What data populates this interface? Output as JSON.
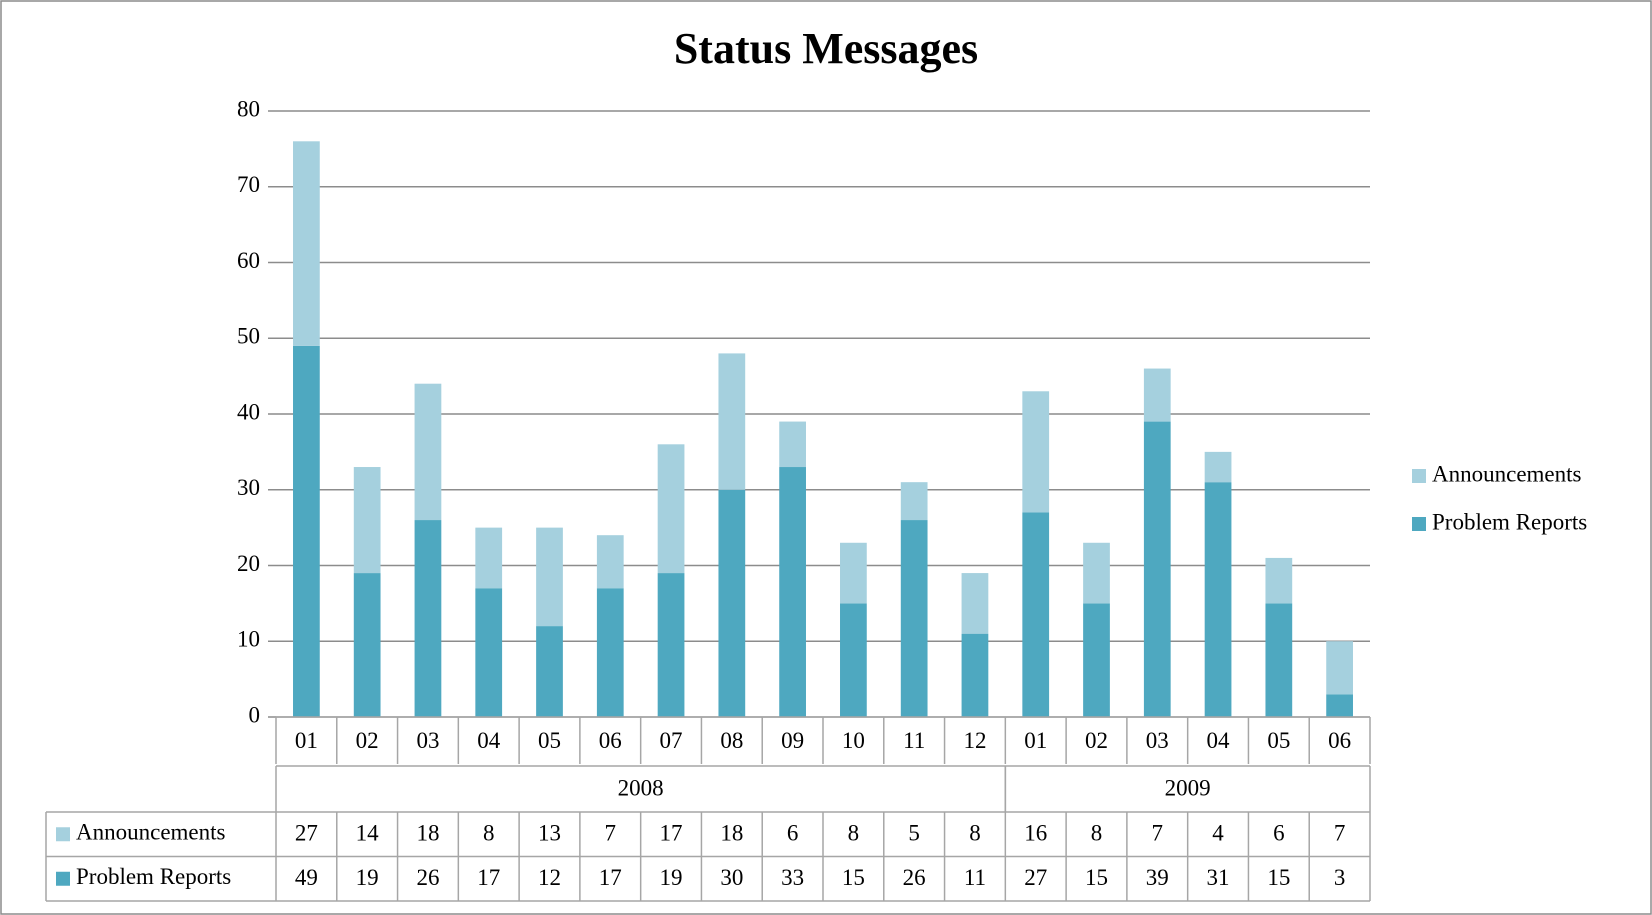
{
  "chart_data": {
    "type": "bar",
    "stacked": true,
    "title": "Status Messages",
    "groups": [
      {
        "label": "2008",
        "categories": [
          "01",
          "02",
          "03",
          "04",
          "05",
          "06",
          "07",
          "08",
          "09",
          "10",
          "11",
          "12"
        ]
      },
      {
        "label": "2009",
        "categories": [
          "01",
          "02",
          "03",
          "04",
          "05",
          "06"
        ]
      }
    ],
    "series": [
      {
        "name": "Announcements",
        "color": "#a5d0de",
        "values": [
          27,
          14,
          18,
          8,
          13,
          7,
          17,
          18,
          6,
          8,
          5,
          8,
          16,
          8,
          7,
          4,
          6,
          7
        ]
      },
      {
        "name": "Problem Reports",
        "color": "#4ea8c0",
        "values": [
          49,
          19,
          26,
          17,
          12,
          17,
          19,
          30,
          33,
          15,
          26,
          11,
          27,
          15,
          39,
          31,
          15,
          3
        ]
      }
    ],
    "ylim": [
      0,
      80
    ],
    "yticks": [
      0,
      10,
      20,
      30,
      40,
      50,
      60,
      70,
      80
    ],
    "grid": true,
    "legend": "right",
    "data_table": true
  }
}
